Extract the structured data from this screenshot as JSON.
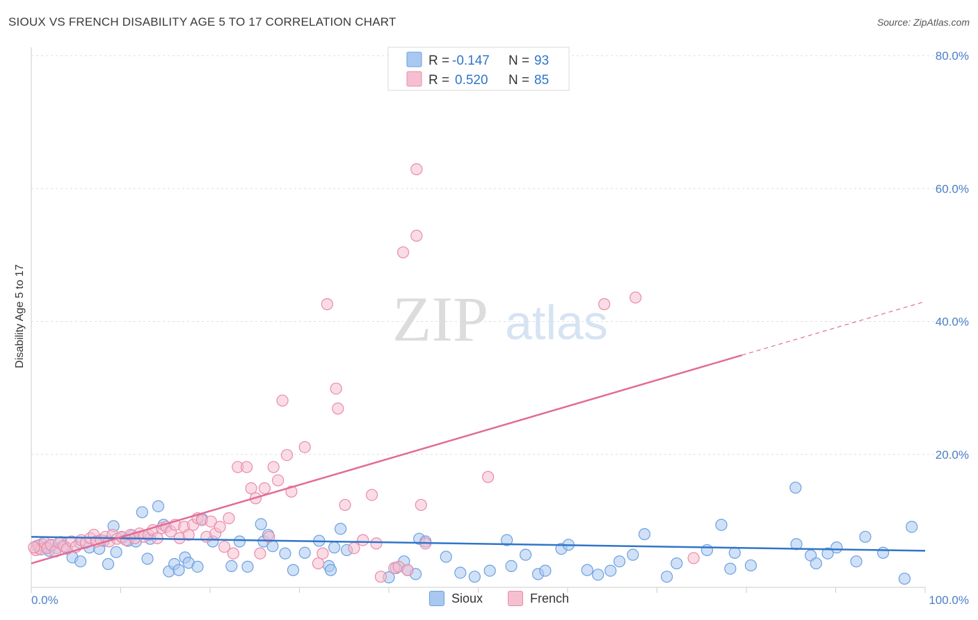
{
  "header": {
    "title": "SIOUX VS FRENCH DISABILITY AGE 5 TO 17 CORRELATION CHART",
    "source": "Source: ZipAtlas.com"
  },
  "watermark": {
    "zip": "ZIP",
    "atlas": "atlas"
  },
  "colors": {
    "sioux_fill": "#a9c8f0",
    "sioux_stroke": "#6a9fe0",
    "sioux_line": "#2e75c9",
    "french_fill": "#f6bfd0",
    "french_stroke": "#e98aa9",
    "french_line": "#e26b97",
    "tick_text": "#4a7fc8",
    "grid": "#dddddd"
  },
  "legend": {
    "rows": [
      {
        "r_label": "R =",
        "r_value": "-0.147",
        "n_label": "N =",
        "n_value": "93"
      },
      {
        "r_label": "R =",
        "r_value": "0.520",
        "n_label": "N =",
        "n_value": "85"
      }
    ],
    "bottom": [
      "Sioux",
      "French"
    ]
  },
  "chart_data": {
    "type": "scatter",
    "title": "SIOUX VS FRENCH DISABILITY AGE 5 TO 17 CORRELATION CHART",
    "xlabel": "",
    "ylabel": "Disability Age 5 to 17",
    "xlim": [
      0,
      100
    ],
    "ylim": [
      0,
      80
    ],
    "x_tick_labels": [
      "0.0%",
      "100.0%"
    ],
    "y_ticks": [
      20,
      40,
      60,
      80
    ],
    "y_tick_labels": [
      "20.0%",
      "40.0%",
      "60.0%",
      "80.0%"
    ],
    "grid": true,
    "series": [
      {
        "name": "Sioux",
        "R": -0.147,
        "N": 93,
        "trend": {
          "x": [
            0,
            100
          ],
          "y": [
            7.6,
            5.5
          ],
          "solid_until": 100
        },
        "points": [
          [
            0.6,
            6.2
          ],
          [
            0.9,
            5.8
          ],
          [
            1.2,
            6.5
          ],
          [
            1.6,
            6.0
          ],
          [
            2.0,
            5.5
          ],
          [
            2.3,
            6.3
          ],
          [
            2.8,
            5.9
          ],
          [
            3.3,
            6.8
          ],
          [
            3.8,
            6.1
          ],
          [
            4.6,
            4.5
          ],
          [
            5.5,
            3.9
          ],
          [
            5.4,
            6.7
          ],
          [
            6.5,
            6.0
          ],
          [
            7.6,
            5.8
          ],
          [
            8.1,
            7.0
          ],
          [
            8.6,
            3.5
          ],
          [
            9.2,
            9.2
          ],
          [
            9.5,
            5.3
          ],
          [
            10.2,
            7.5
          ],
          [
            10.8,
            7.0
          ],
          [
            11.3,
            7.8
          ],
          [
            11.7,
            6.9
          ],
          [
            12.4,
            11.3
          ],
          [
            13.0,
            4.3
          ],
          [
            13.3,
            7.3
          ],
          [
            14.2,
            12.2
          ],
          [
            14.8,
            9.4
          ],
          [
            15.4,
            2.4
          ],
          [
            16.0,
            3.5
          ],
          [
            16.5,
            2.6
          ],
          [
            17.2,
            4.5
          ],
          [
            17.6,
            3.7
          ],
          [
            18.6,
            3.1
          ],
          [
            19.1,
            10.3
          ],
          [
            20.3,
            6.9
          ],
          [
            22.4,
            3.2
          ],
          [
            23.3,
            6.9
          ],
          [
            24.2,
            3.1
          ],
          [
            25.7,
            9.5
          ],
          [
            26.0,
            6.9
          ],
          [
            26.5,
            7.9
          ],
          [
            27.0,
            6.2
          ],
          [
            28.4,
            5.1
          ],
          [
            29.3,
            2.6
          ],
          [
            30.6,
            5.2
          ],
          [
            32.2,
            7.0
          ],
          [
            33.3,
            3.2
          ],
          [
            33.5,
            2.6
          ],
          [
            33.9,
            6.0
          ],
          [
            34.6,
            8.8
          ],
          [
            35.3,
            5.6
          ],
          [
            40.0,
            1.5
          ],
          [
            40.8,
            2.9
          ],
          [
            41.7,
            3.9
          ],
          [
            42.1,
            2.6
          ],
          [
            43.0,
            2.0
          ],
          [
            43.4,
            7.3
          ],
          [
            44.1,
            6.9
          ],
          [
            46.4,
            4.6
          ],
          [
            48.0,
            2.2
          ],
          [
            49.6,
            1.6
          ],
          [
            51.3,
            2.5
          ],
          [
            53.2,
            7.1
          ],
          [
            53.7,
            3.2
          ],
          [
            55.3,
            4.9
          ],
          [
            56.7,
            2.0
          ],
          [
            57.5,
            2.5
          ],
          [
            59.3,
            5.8
          ],
          [
            60.1,
            6.4
          ],
          [
            62.2,
            2.6
          ],
          [
            63.4,
            1.9
          ],
          [
            64.8,
            2.5
          ],
          [
            65.8,
            3.9
          ],
          [
            67.3,
            4.9
          ],
          [
            68.6,
            8.0
          ],
          [
            71.1,
            1.6
          ],
          [
            72.2,
            3.6
          ],
          [
            75.6,
            5.6
          ],
          [
            77.2,
            9.4
          ],
          [
            78.2,
            2.8
          ],
          [
            78.7,
            5.2
          ],
          [
            80.5,
            3.3
          ],
          [
            85.6,
            6.5
          ],
          [
            85.5,
            15.0
          ],
          [
            87.2,
            4.8
          ],
          [
            87.8,
            3.6
          ],
          [
            89.1,
            5.1
          ],
          [
            90.1,
            6.0
          ],
          [
            92.3,
            3.9
          ],
          [
            93.3,
            7.6
          ],
          [
            95.3,
            5.2
          ],
          [
            97.7,
            1.3
          ],
          [
            98.5,
            9.1
          ]
        ]
      },
      {
        "name": "French",
        "R": 0.52,
        "N": 85,
        "trend": {
          "x": [
            0,
            100
          ],
          "y": [
            3.6,
            43.0
          ],
          "solid_until": 79.5
        },
        "points": [
          [
            0.5,
            5.6
          ],
          [
            0.8,
            6.3
          ],
          [
            1.1,
            5.7
          ],
          [
            1.5,
            6.7
          ],
          [
            1.8,
            5.9
          ],
          [
            2.2,
            6.4
          ],
          [
            2.7,
            5.4
          ],
          [
            3.1,
            6.7
          ],
          [
            3.6,
            6.2
          ],
          [
            4.0,
            5.8
          ],
          [
            4.5,
            6.9
          ],
          [
            5.0,
            6.1
          ],
          [
            5.6,
            7.1
          ],
          [
            6.1,
            6.7
          ],
          [
            6.6,
            7.4
          ],
          [
            7.0,
            7.9
          ],
          [
            7.3,
            6.9
          ],
          [
            7.8,
            7.1
          ],
          [
            8.3,
            7.6
          ],
          [
            8.7,
            6.9
          ],
          [
            9.1,
            7.9
          ],
          [
            9.6,
            7.3
          ],
          [
            10.1,
            7.6
          ],
          [
            10.6,
            7.1
          ],
          [
            11.1,
            7.9
          ],
          [
            11.6,
            7.4
          ],
          [
            12.1,
            8.1
          ],
          [
            12.6,
            7.6
          ],
          [
            13.1,
            7.9
          ],
          [
            13.6,
            8.6
          ],
          [
            14.1,
            7.4
          ],
          [
            14.6,
            8.9
          ],
          [
            15.1,
            9.1
          ],
          [
            15.6,
            8.4
          ],
          [
            16.1,
            9.4
          ],
          [
            16.6,
            7.4
          ],
          [
            17.1,
            9.1
          ],
          [
            17.6,
            7.9
          ],
          [
            18.1,
            9.4
          ],
          [
            18.6,
            10.4
          ],
          [
            19.1,
            10.1
          ],
          [
            19.6,
            7.6
          ],
          [
            20.1,
            9.9
          ],
          [
            20.6,
            8.1
          ],
          [
            21.1,
            9.1
          ],
          [
            21.6,
            6.1
          ],
          [
            22.1,
            10.4
          ],
          [
            22.6,
            5.1
          ],
          [
            23.1,
            18.1
          ],
          [
            24.1,
            18.1
          ],
          [
            24.6,
            14.9
          ],
          [
            25.1,
            13.4
          ],
          [
            25.6,
            5.1
          ],
          [
            26.1,
            14.9
          ],
          [
            26.6,
            7.6
          ],
          [
            27.1,
            18.1
          ],
          [
            27.6,
            16.1
          ],
          [
            28.1,
            28.1
          ],
          [
            28.6,
            19.9
          ],
          [
            29.1,
            14.4
          ],
          [
            30.6,
            21.1
          ],
          [
            32.1,
            3.6
          ],
          [
            32.6,
            5.1
          ],
          [
            33.1,
            42.6
          ],
          [
            34.1,
            29.9
          ],
          [
            34.3,
            26.9
          ],
          [
            35.1,
            12.4
          ],
          [
            36.1,
            5.9
          ],
          [
            37.1,
            7.1
          ],
          [
            38.1,
            13.9
          ],
          [
            38.6,
            6.6
          ],
          [
            39.1,
            1.6
          ],
          [
            40.6,
            2.9
          ],
          [
            41.1,
            3.1
          ],
          [
            42.1,
            2.6
          ],
          [
            41.6,
            50.4
          ],
          [
            43.1,
            62.9
          ],
          [
            43.1,
            52.9
          ],
          [
            43.6,
            12.4
          ],
          [
            44.1,
            6.6
          ],
          [
            51.1,
            16.6
          ],
          [
            64.1,
            42.6
          ],
          [
            67.6,
            43.6
          ],
          [
            74.1,
            4.4
          ],
          [
            0.3,
            6.0
          ]
        ]
      }
    ]
  }
}
